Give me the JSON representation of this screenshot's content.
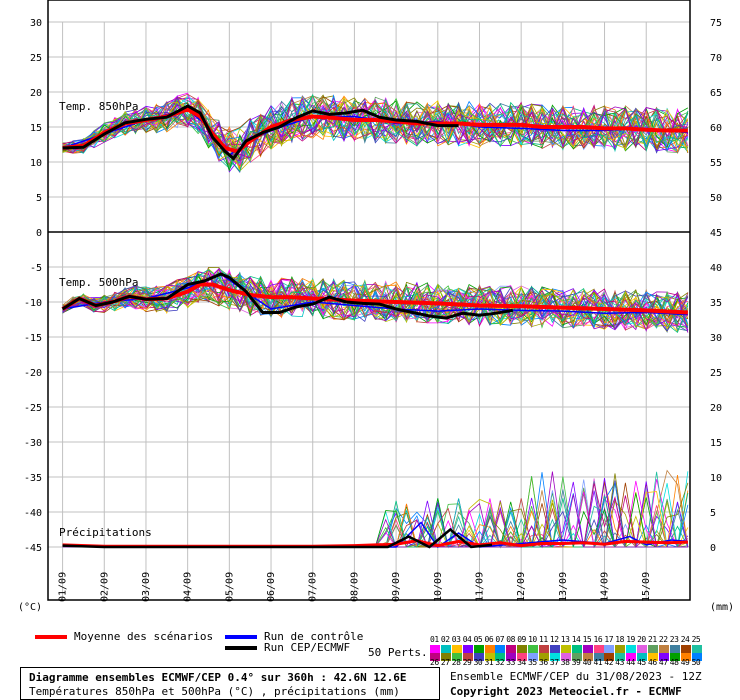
{
  "chart_data": {
    "type": "line",
    "dates": [
      "01/09",
      "02/09",
      "03/09",
      "04/09",
      "05/09",
      "06/09",
      "07/09",
      "08/09",
      "09/09",
      "10/09",
      "11/09",
      "12/09",
      "13/09",
      "14/09",
      "15/09"
    ],
    "left_axis_ticks": [
      "30",
      "25",
      "20",
      "15",
      "10",
      "5",
      "0",
      "-5",
      "-10",
      "-15",
      "-20",
      "-25",
      "-30",
      "-35",
      "-40",
      "-45"
    ],
    "right_axis_ticks_top": [
      "75",
      "70",
      "65",
      "60",
      "55",
      "50",
      "45"
    ],
    "right_axis_ticks_bottom": [
      "40",
      "35",
      "30",
      "25",
      "20",
      "15",
      "10",
      "5",
      "0"
    ],
    "left_unit": "(°C)",
    "right_unit": "(mm)",
    "panel_labels": {
      "t850": "Temp. 850hPa",
      "t500": "Temp. 500hPa",
      "precip": "Précipitations"
    },
    "t850": {
      "mean": [
        [
          0,
          12
        ],
        [
          0.5,
          12.3
        ],
        [
          1,
          14.2
        ],
        [
          1.5,
          15.5
        ],
        [
          2,
          16
        ],
        [
          2.5,
          16.5
        ],
        [
          3,
          17.5
        ],
        [
          3.3,
          16.5
        ],
        [
          3.6,
          14
        ],
        [
          3.9,
          12
        ],
        [
          4.2,
          11.5
        ],
        [
          4.5,
          13
        ],
        [
          5,
          15
        ],
        [
          5.5,
          16
        ],
        [
          6,
          16.5
        ],
        [
          6.5,
          16.3
        ],
        [
          7,
          16
        ],
        [
          7.5,
          16
        ],
        [
          8,
          15.8
        ],
        [
          8.5,
          15.5
        ],
        [
          9,
          15.5
        ],
        [
          9.5,
          15.5
        ],
        [
          10,
          15.3
        ],
        [
          10.5,
          15.3
        ],
        [
          11,
          15.3
        ],
        [
          11.5,
          15
        ],
        [
          12,
          15
        ],
        [
          12.5,
          15
        ],
        [
          13,
          14.8
        ],
        [
          13.5,
          14.8
        ],
        [
          14,
          14.6
        ],
        [
          14.5,
          14.5
        ],
        [
          15,
          14.5
        ]
      ],
      "run_cep": [
        [
          0,
          12
        ],
        [
          0.5,
          12.1
        ],
        [
          1,
          14
        ],
        [
          1.5,
          15.6
        ],
        [
          2,
          16.1
        ],
        [
          2.5,
          16.4
        ],
        [
          3,
          18
        ],
        [
          3.3,
          17
        ],
        [
          3.6,
          13.5
        ],
        [
          3.9,
          11.5
        ],
        [
          4.1,
          10.5
        ],
        [
          4.4,
          13
        ],
        [
          4.8,
          14.2
        ],
        [
          5.2,
          15
        ],
        [
          5.6,
          16.3
        ],
        [
          6,
          17.3
        ],
        [
          6.4,
          16.8
        ],
        [
          6.8,
          17
        ],
        [
          7.2,
          17.4
        ],
        [
          7.6,
          16.4
        ],
        [
          8,
          16
        ],
        [
          8.5,
          15.8
        ],
        [
          9,
          15.2
        ],
        [
          9.5,
          15.2
        ]
      ],
      "control": [
        [
          0,
          12
        ],
        [
          1,
          14
        ],
        [
          2,
          16
        ],
        [
          3,
          17.5
        ],
        [
          3.5,
          15
        ],
        [
          4,
          11
        ],
        [
          4.5,
          13
        ],
        [
          5,
          14.5
        ],
        [
          6,
          16.5
        ],
        [
          7,
          16.5
        ],
        [
          8,
          15.5
        ],
        [
          9,
          15.8
        ],
        [
          10,
          15
        ],
        [
          11,
          14.8
        ],
        [
          12,
          14.5
        ],
        [
          13,
          14.5
        ],
        [
          14,
          14.8
        ],
        [
          15,
          14.2
        ]
      ]
    },
    "t500": {
      "mean": [
        [
          0,
          -11
        ],
        [
          0.4,
          -9.5
        ],
        [
          0.8,
          -10.5
        ],
        [
          1.2,
          -10
        ],
        [
          1.6,
          -9.2
        ],
        [
          2,
          -9.6
        ],
        [
          2.5,
          -9.5
        ],
        [
          3,
          -8.5
        ],
        [
          3.3,
          -7.5
        ],
        [
          3.6,
          -7.5
        ],
        [
          4,
          -8.3
        ],
        [
          4.5,
          -9
        ],
        [
          5,
          -9.3
        ],
        [
          5.5,
          -9.3
        ],
        [
          6,
          -9.5
        ],
        [
          7,
          -9.8
        ],
        [
          8,
          -10
        ],
        [
          9,
          -10.2
        ],
        [
          10,
          -10.5
        ],
        [
          11,
          -10.6
        ],
        [
          12,
          -10.8
        ],
        [
          13,
          -11
        ],
        [
          14,
          -11.2
        ],
        [
          15,
          -11.5
        ]
      ],
      "run_cep": [
        [
          0,
          -11
        ],
        [
          0.4,
          -9.5
        ],
        [
          0.8,
          -10.5
        ],
        [
          1.2,
          -10
        ],
        [
          1.6,
          -9.2
        ],
        [
          2,
          -9.6
        ],
        [
          2.5,
          -9.5
        ],
        [
          3,
          -7.5
        ],
        [
          3.4,
          -7
        ],
        [
          3.8,
          -6
        ],
        [
          4,
          -6.5
        ],
        [
          4.4,
          -8.5
        ],
        [
          4.8,
          -11.5
        ],
        [
          5.2,
          -11.5
        ],
        [
          5.6,
          -10.7
        ],
        [
          6,
          -10.3
        ],
        [
          6.4,
          -9.3
        ],
        [
          6.8,
          -10
        ],
        [
          7.2,
          -10.2
        ],
        [
          7.6,
          -10.3
        ],
        [
          8,
          -11
        ],
        [
          8.4,
          -11.5
        ],
        [
          8.8,
          -12
        ],
        [
          9.2,
          -12.3
        ],
        [
          9.6,
          -11.6
        ],
        [
          10,
          -11.9
        ],
        [
          10.4,
          -11.6
        ],
        [
          10.8,
          -11.2
        ]
      ],
      "control": [
        [
          0,
          -11
        ],
        [
          1,
          -10
        ],
        [
          2,
          -9.5
        ],
        [
          3,
          -8
        ],
        [
          3.8,
          -6
        ],
        [
          4.5,
          -9
        ],
        [
          5,
          -11
        ],
        [
          6,
          -10
        ],
        [
          7,
          -10.5
        ],
        [
          8,
          -11
        ],
        [
          9,
          -11.3
        ],
        [
          10,
          -11
        ],
        [
          11,
          -11.2
        ],
        [
          12,
          -11.3
        ],
        [
          13,
          -11.6
        ],
        [
          14,
          -11.5
        ],
        [
          15,
          -11.8
        ]
      ]
    },
    "precip": {
      "mean": [
        [
          0,
          0.3
        ],
        [
          1,
          0.1
        ],
        [
          2,
          0.1
        ],
        [
          3,
          0.1
        ],
        [
          4,
          0.1
        ],
        [
          5,
          0.1
        ],
        [
          6,
          0.1
        ],
        [
          7,
          0.2
        ],
        [
          8,
          0.4
        ],
        [
          8.5,
          0.9
        ],
        [
          9,
          0.2
        ],
        [
          9.5,
          0.8
        ],
        [
          10,
          0.3
        ],
        [
          10.5,
          0.6
        ],
        [
          11,
          0.2
        ],
        [
          11.5,
          0.5
        ],
        [
          12,
          0.5
        ],
        [
          12.5,
          0.6
        ],
        [
          13,
          0.4
        ],
        [
          13.5,
          0.8
        ],
        [
          14,
          0.7
        ],
        [
          14.5,
          0.6
        ],
        [
          15,
          0.7
        ]
      ],
      "run_cep": [
        [
          0,
          0.2
        ],
        [
          1,
          0
        ],
        [
          2,
          0
        ],
        [
          3,
          0
        ],
        [
          4,
          0
        ],
        [
          5,
          0
        ],
        [
          6,
          0
        ],
        [
          7,
          0
        ],
        [
          7.8,
          0
        ],
        [
          8.3,
          1.5
        ],
        [
          8.8,
          0
        ],
        [
          9.3,
          2.5
        ],
        [
          9.8,
          0
        ],
        [
          10.3,
          0.3
        ]
      ],
      "control": [
        [
          0,
          0.2
        ],
        [
          2,
          0
        ],
        [
          4,
          0
        ],
        [
          6,
          0
        ],
        [
          8,
          0
        ],
        [
          8.6,
          3.5
        ],
        [
          9,
          0
        ],
        [
          9.5,
          2
        ],
        [
          10,
          0
        ],
        [
          11,
          0.5
        ],
        [
          12,
          1
        ],
        [
          13,
          0.5
        ],
        [
          13.6,
          1.5
        ],
        [
          14,
          0.3
        ],
        [
          14.6,
          1
        ],
        [
          15,
          0.8
        ]
      ]
    },
    "legend": {
      "mean": "Moyenne des scénarios",
      "control": "Run de contrôle",
      "cep": "Run CEP/ECMWF",
      "perts": "50 Perts."
    },
    "pert_numbers_top": [
      "01",
      "02",
      "03",
      "04",
      "05",
      "06",
      "07",
      "08",
      "09",
      "10",
      "11",
      "12",
      "13",
      "14",
      "15",
      "16",
      "17",
      "18",
      "19",
      "20",
      "21",
      "22",
      "23",
      "24",
      "25"
    ],
    "pert_numbers_bottom": [
      "26",
      "27",
      "28",
      "29",
      "30",
      "31",
      "32",
      "33",
      "34",
      "35",
      "36",
      "37",
      "38",
      "39",
      "40",
      "41",
      "42",
      "43",
      "44",
      "45",
      "46",
      "47",
      "48",
      "49",
      "50"
    ],
    "colors": {
      "mean": "#ff0000",
      "control": "#0000ff",
      "cep": "#000000",
      "grid": "#c0c0c0",
      "pert_palette": [
        "#ff00ff",
        "#00c0c0",
        "#ffc000",
        "#8000ff",
        "#00a000",
        "#ff8000",
        "#0080ff",
        "#c00080",
        "#808000",
        "#40c040",
        "#c04040",
        "#4040c0",
        "#c0c000",
        "#00c080",
        "#a000c0",
        "#ff4080",
        "#80a0ff",
        "#a0a000",
        "#00e0e0",
        "#e060e0",
        "#60a060",
        "#c08040",
        "#4080a0",
        "#a04000",
        "#20c0a0"
      ]
    }
  },
  "footer": {
    "title": "Diagramme ensembles ECMWF/CEP 0.4° sur 360h : 42.6N 12.6E",
    "subtitle": "Températures 850hPa et 500hPa (°C) , précipitations (mm)",
    "ensemble_run": "Ensemble ECMWF/CEP du 31/08/2023 - 12Z",
    "copyright": "Copyright 2023 Meteociel.fr - ECMWF"
  }
}
